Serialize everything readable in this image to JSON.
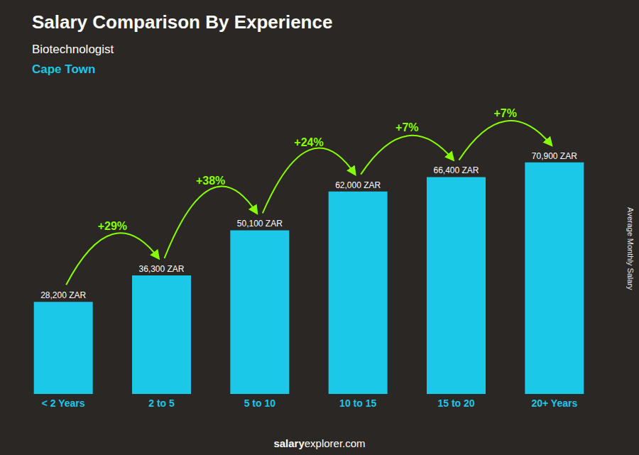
{
  "chart_data": {
    "type": "bar",
    "title": "Salary Comparison By Experience",
    "subtitle": "Biotechnologist",
    "annotations": [
      "Cape Town",
      "salary",
      "explorer.com"
    ],
    "ylabel": "Average Monthly Salary",
    "categories": [
      "< 2 Years",
      "2 to 5",
      "5 to 10",
      "10 to 15",
      "15 to 20",
      "20+ Years"
    ],
    "values": [
      28200,
      36300,
      50100,
      62000,
      66400,
      70900
    ],
    "value_labels": [
      "28,200 ZAR",
      "36,300 ZAR",
      "50,100 ZAR",
      "62,000 ZAR",
      "66,400 ZAR",
      "70,900 ZAR"
    ],
    "data_labels": true,
    "color": "#1BC8E8",
    "ylim": [
      0,
      88000
    ],
    "tick_labels": "x",
    "grid": false,
    "change_labels": [
      null,
      "+29%",
      "+38%",
      "+24%",
      "+7%",
      "+7%"
    ],
    "change_color": "#88FF00"
  }
}
